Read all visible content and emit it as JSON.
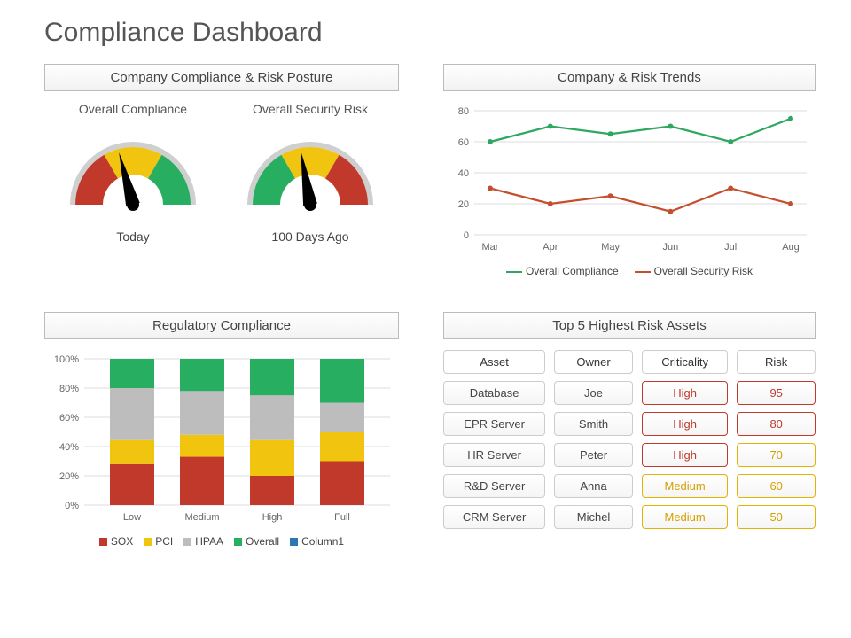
{
  "title": "Compliance Dashboard",
  "colors": {
    "red": "#c0392b",
    "yellow": "#f1c40f",
    "green": "#27ae60",
    "grey": "#bdbdbd",
    "orange_line": "#c44f2e",
    "green_line": "#2ea860",
    "blue": "#2e75b6"
  },
  "posture": {
    "title": "Company Compliance & Risk Posture",
    "gauges": [
      {
        "top_label": "Overall Compliance",
        "bottom_label": "Today",
        "needle_angle_deg": 105,
        "segments": [
          "red",
          "yellow",
          "green"
        ]
      },
      {
        "top_label": "Overall Security Risk",
        "bottom_label": "100 Days Ago",
        "needle_angle_deg": 100,
        "segments": [
          "green",
          "yellow",
          "red"
        ]
      }
    ]
  },
  "trends": {
    "title": "Company & Risk Trends",
    "x_labels": [
      "Mar",
      "Apr",
      "May",
      "Jun",
      "Jul",
      "Aug"
    ],
    "y_ticks": [
      0,
      20,
      40,
      60,
      80
    ],
    "ylim": [
      0,
      80
    ],
    "series": [
      {
        "name": "Overall Compliance",
        "color_key": "green_line",
        "values": [
          60,
          70,
          65,
          70,
          60,
          75
        ]
      },
      {
        "name": "Overall Security Risk",
        "color_key": "orange_line",
        "values": [
          30,
          20,
          25,
          15,
          30,
          20
        ]
      }
    ]
  },
  "regulatory": {
    "title": "Regulatory Compliance",
    "categories": [
      "Low",
      "Medium",
      "High",
      "Full"
    ],
    "y_ticks": [
      "0%",
      "20%",
      "40%",
      "60%",
      "80%",
      "100%"
    ],
    "stacks": [
      "SOX",
      "PCI",
      "HPAA",
      "Overall"
    ],
    "stack_colors": [
      "red",
      "yellow",
      "grey",
      "green"
    ],
    "extra_legend": {
      "label": "Column1",
      "color_key": "blue"
    },
    "data": [
      {
        "SOX": 28,
        "PCI": 17,
        "HPAA": 35,
        "Overall": 20
      },
      {
        "SOX": 33,
        "PCI": 15,
        "HPAA": 30,
        "Overall": 22
      },
      {
        "SOX": 20,
        "PCI": 25,
        "HPAA": 30,
        "Overall": 25
      },
      {
        "SOX": 30,
        "PCI": 20,
        "HPAA": 20,
        "Overall": 30
      }
    ]
  },
  "assets": {
    "title": "Top 5 Highest Risk Assets",
    "columns": [
      "Asset",
      "Owner",
      "Criticality",
      "Risk"
    ],
    "rows": [
      {
        "asset": "Database",
        "owner": "Joe",
        "criticality": "High",
        "risk": 95,
        "crit_class": "high",
        "risk_class": "risk-95"
      },
      {
        "asset": "EPR Server",
        "owner": "Smith",
        "criticality": "High",
        "risk": 80,
        "crit_class": "high",
        "risk_class": "risk-80"
      },
      {
        "asset": "HR Server",
        "owner": "Peter",
        "criticality": "High",
        "risk": 70,
        "crit_class": "high",
        "risk_class": "risk-70"
      },
      {
        "asset": "R&D Server",
        "owner": "Anna",
        "criticality": "Medium",
        "risk": 60,
        "crit_class": "medium",
        "risk_class": "risk-60"
      },
      {
        "asset": "CRM Server",
        "owner": "Michel",
        "criticality": "Medium",
        "risk": 50,
        "crit_class": "medium",
        "risk_class": "risk-50"
      }
    ]
  }
}
